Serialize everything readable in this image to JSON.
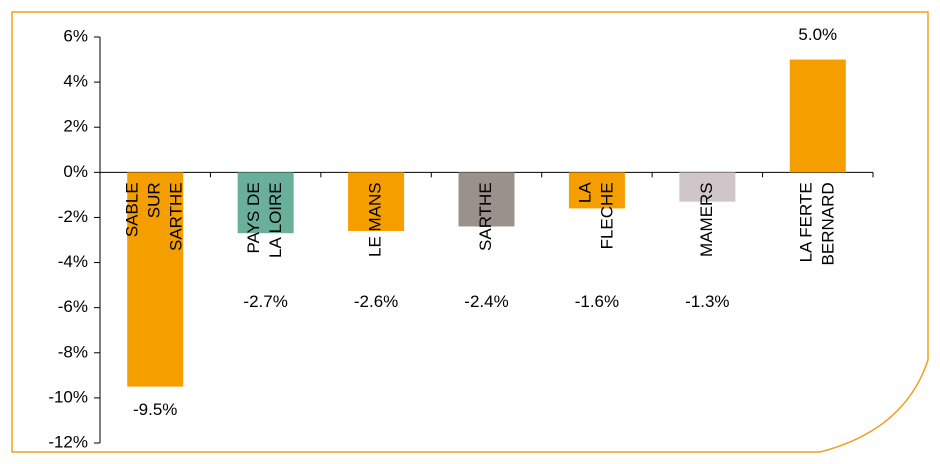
{
  "chart_data": {
    "type": "bar",
    "categories": [
      [
        "SABLE",
        "SUR",
        "SARTHE"
      ],
      [
        "PAYS DE",
        "LA LOIRE"
      ],
      [
        "LE MANS"
      ],
      [
        "SARTHE"
      ],
      [
        "LA",
        "FLECHE"
      ],
      [
        "MAMERS"
      ],
      [
        "LA FERTE",
        "BERNARD"
      ]
    ],
    "values": [
      -9.5,
      -2.7,
      -2.6,
      -2.4,
      -1.6,
      -1.3,
      5.0
    ],
    "value_labels": [
      "-9.5%",
      "-2.7%",
      "-2.6%",
      "-2.4%",
      "-1.6%",
      "-1.3%",
      "5.0%"
    ],
    "colors": [
      "#f59e00",
      "#6aaf9a",
      "#f59e00",
      "#9b918b",
      "#f59e00",
      "#cfc6c9",
      "#f59e00"
    ],
    "ylim": [
      -12,
      6
    ],
    "yticks": [
      {
        "value": -12,
        "label": "-12%"
      },
      {
        "value": -10,
        "label": "-10%"
      },
      {
        "value": -8,
        "label": "-8%"
      },
      {
        "value": -6,
        "label": "-6%"
      },
      {
        "value": -4,
        "label": "-4%"
      },
      {
        "value": -2,
        "label": "-2%"
      },
      {
        "value": 0,
        "label": "0%"
      },
      {
        "value": 2,
        "label": "2%"
      },
      {
        "value": 4,
        "label": "4%"
      },
      {
        "value": 6,
        "label": "6%"
      }
    ]
  }
}
